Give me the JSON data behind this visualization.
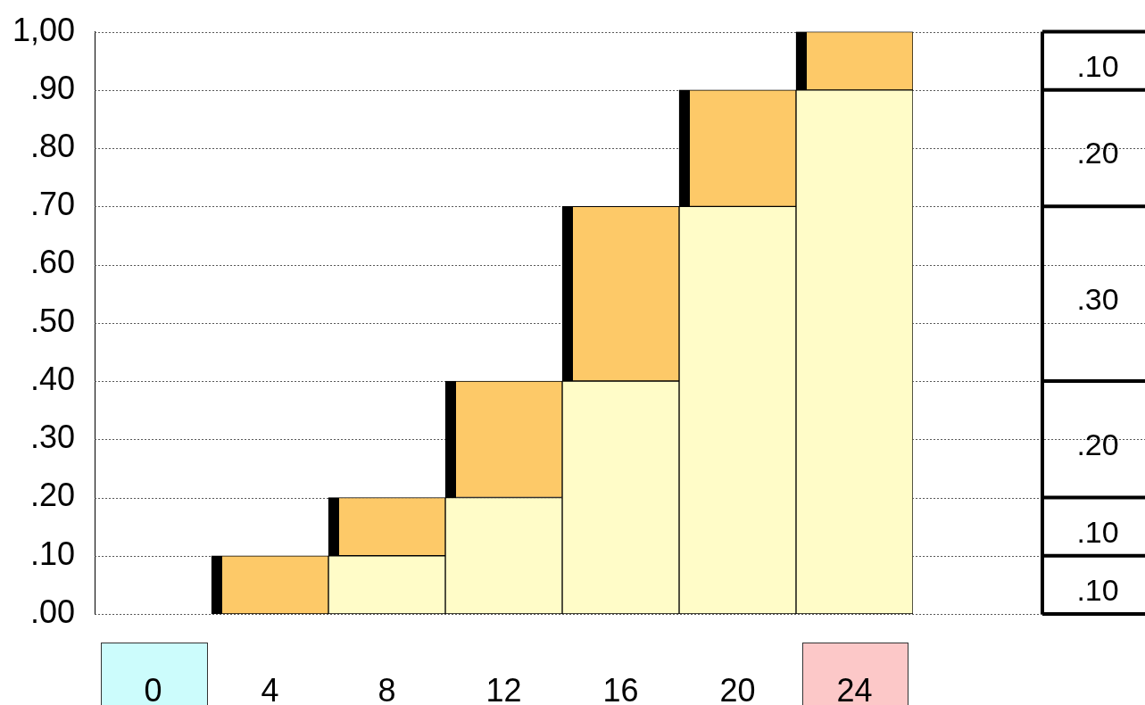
{
  "chart_data": {
    "type": "bar",
    "stacked": true,
    "categories": [
      "0",
      "4",
      "8",
      "12",
      "16",
      "20",
      "24"
    ],
    "series": [
      {
        "color": "#fffcc8",
        "values": [
          0,
          0,
          0.1,
          0.2,
          0.4,
          0.7,
          0.9
        ]
      },
      {
        "color": "#fdc968",
        "values": [
          0,
          0.1,
          0.1,
          0.2,
          0.3,
          0.2,
          0.1
        ]
      }
    ],
    "ylim": [
      0,
      1
    ],
    "yticks": [
      {
        "value": 0,
        "label": ".00"
      },
      {
        "value": 0.1,
        "label": ".10"
      },
      {
        "value": 0.2,
        "label": ".20"
      },
      {
        "value": 0.3,
        "label": ".30"
      },
      {
        "value": 0.4,
        "label": ".40"
      },
      {
        "value": 0.5,
        "label": ".50"
      },
      {
        "value": 0.6,
        "label": ".60"
      },
      {
        "value": 0.7,
        "label": ".70"
      },
      {
        "value": 0.8,
        "label": ".80"
      },
      {
        "value": 0.9,
        "label": ".90"
      },
      {
        "value": 1,
        "label": "1,00"
      }
    ],
    "grid": "y",
    "legend": false,
    "annotations": [
      ".10",
      ".10",
      ".20",
      ".30",
      ".20",
      ".10"
    ]
  }
}
